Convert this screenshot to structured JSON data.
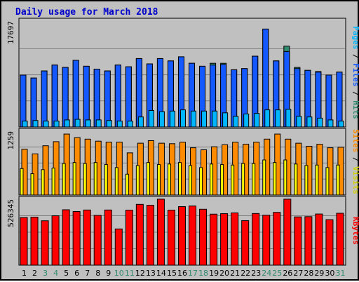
{
  "chart_data": {
    "type": "bar",
    "title": "Daily usage for March 2018",
    "categories": [
      "1",
      "2",
      "3",
      "4",
      "5",
      "6",
      "7",
      "8",
      "9",
      "10",
      "11",
      "12",
      "13",
      "14",
      "15",
      "16",
      "17",
      "18",
      "19",
      "20",
      "21",
      "22",
      "23",
      "24",
      "25",
      "26",
      "27",
      "28",
      "29",
      "30",
      "31"
    ],
    "weekend_days": [
      "3",
      "4",
      "10",
      "11",
      "17",
      "18",
      "24",
      "25",
      "31"
    ],
    "panels": [
      {
        "name": "pages-files-hits",
        "max_label": "17697",
        "ylim": [
          0,
          17697
        ],
        "series": [
          {
            "name": "Pages",
            "color": "#00b6ff",
            "values": [
              1000,
              1100,
              1000,
              1000,
              1200,
              1300,
              1200,
              1200,
              1100,
              1000,
              1000,
              1700,
              2800,
              2600,
              2700,
              2900,
              2700,
              2700,
              2700,
              2400,
              1800,
              2200,
              2300,
              2900,
              2900,
              3000,
              1800,
              1700,
              1500,
              1200,
              1000
            ]
          },
          {
            "name": "Files",
            "color": "#1458ff",
            "values": [
              8800,
              8300,
              9500,
              10500,
              10100,
              11300,
              10300,
              9800,
              9500,
              10500,
              10200,
              11600,
              10700,
              11600,
              11200,
              11900,
              10800,
              10300,
              10500,
              10600,
              9700,
              9900,
              12000,
              16600,
              11200,
              12800,
              9900,
              9600,
              9300,
              8800,
              9300
            ]
          },
          {
            "name": "Hits",
            "color": "#2f8a6e",
            "values": [
              8800,
              8300,
              9500,
              10500,
              10100,
              11300,
              10300,
              9800,
              9500,
              10500,
              10200,
              11600,
              10700,
              11600,
              11200,
              11900,
              10800,
              10300,
              10800,
              10800,
              9700,
              9900,
              12000,
              16600,
              11200,
              13700,
              10100,
              9600,
              9400,
              8800,
              9300
            ]
          }
        ]
      },
      {
        "name": "sites-visits",
        "max_label": "1259",
        "ylim": [
          0,
          1259
        ],
        "series": [
          {
            "name": "Visits",
            "color": "#ffff00",
            "values": [
              520,
              420,
              500,
              530,
              620,
              640,
              620,
              640,
              600,
              540,
              410,
              580,
              640,
              600,
              610,
              640,
              580,
              540,
              610,
              600,
              590,
              620,
              620,
              690,
              640,
              690,
              610,
              580,
              590,
              540,
              590
            ]
          },
          {
            "name": "Sites",
            "color": "#ff8c00",
            "values": [
              900,
              810,
              970,
              1050,
              1200,
              1130,
              1100,
              1060,
              1040,
              1040,
              830,
              1020,
              1070,
              1020,
              1010,
              1040,
              930,
              890,
              950,
              990,
              1040,
              1000,
              1040,
              1100,
              1200,
              1100,
              1020,
              960,
              1000,
              930,
              940
            ]
          }
        ]
      },
      {
        "name": "kbytes",
        "max_label": "526345",
        "ylim": [
          0,
          526345
        ],
        "series": [
          {
            "name": "KBytes",
            "color": "#ff0000",
            "values": [
              380000,
              383000,
              354000,
              394000,
              442000,
              428000,
              440000,
              397000,
              440000,
              289000,
              439000,
              485000,
              478000,
              526345,
              439000,
              467000,
              472000,
              446000,
              407000,
              411000,
              417000,
              355000,
              412000,
              398000,
              421000,
              526345,
              385000,
              387000,
              408000,
              363000,
              414000
            ]
          }
        ]
      }
    ],
    "right_labels": [
      {
        "parts": [
          {
            "text": "Pages",
            "color": "#00b6ff"
          },
          {
            "text": " / ",
            "color": "#000000"
          },
          {
            "text": "Files",
            "color": "#1458ff"
          },
          {
            "text": " / ",
            "color": "#000000"
          },
          {
            "text": "Hits",
            "color": "#2f8a6e"
          }
        ]
      },
      {
        "parts": [
          {
            "text": "Sites",
            "color": "#ff8c00"
          },
          {
            "text": " / ",
            "color": "#000000"
          },
          {
            "text": "Visits",
            "color": "#d2d200"
          }
        ]
      },
      {
        "parts": [
          {
            "text": "KBytes",
            "color": "#ff0000"
          }
        ]
      }
    ],
    "colors": {
      "weekday_label": "#000000",
      "weekend_label": "#2f8a6e",
      "title": "#0000cc",
      "background": "#c0c0c0",
      "grid": "#808080"
    }
  }
}
